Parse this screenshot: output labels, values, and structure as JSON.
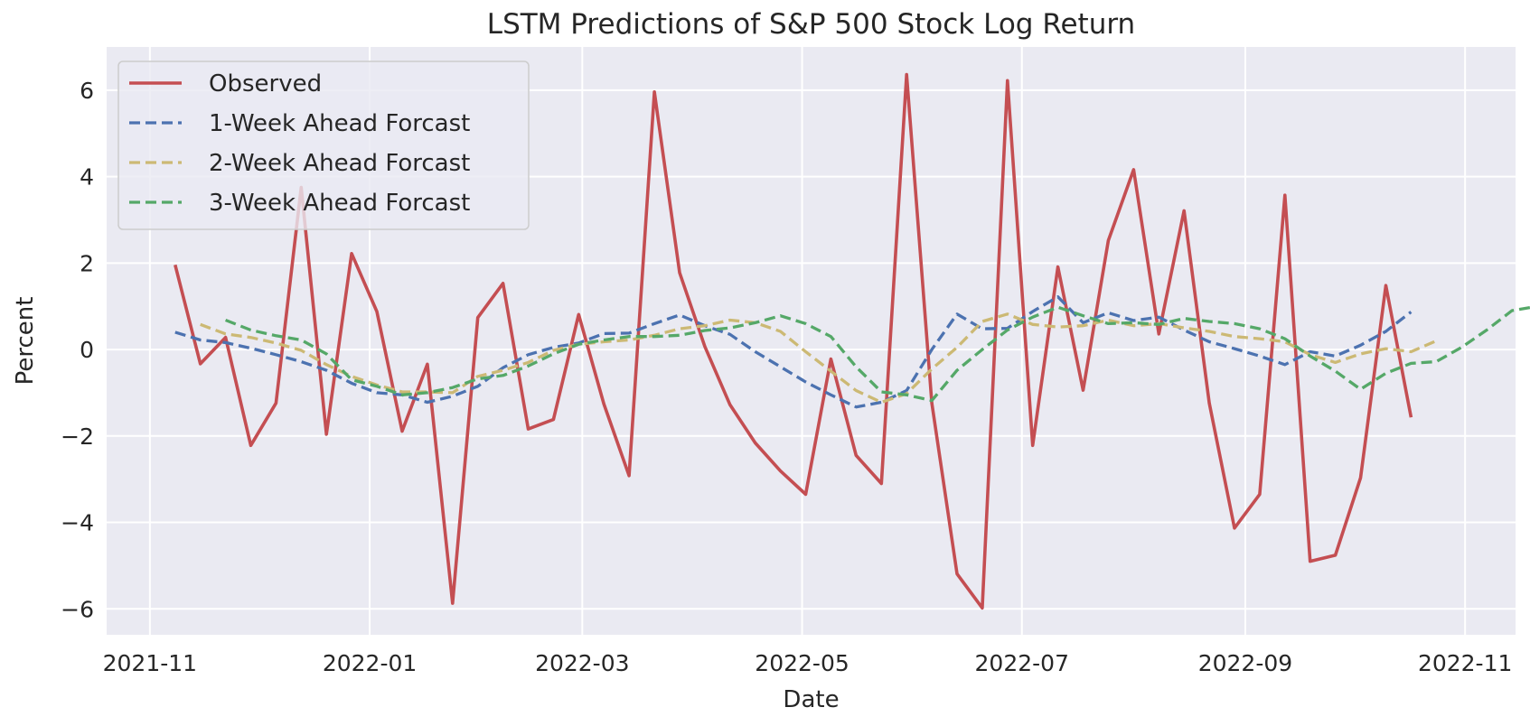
{
  "chart_data": {
    "type": "line",
    "title": "LSTM Predictions of S&P 500 Stock Log Return",
    "xlabel": "Date",
    "ylabel": "Percent",
    "xlim": [
      "2021-10-20",
      "2022-11-15"
    ],
    "ylim": [
      -6.6,
      7.0
    ],
    "grid": true,
    "legend_position": "top-left",
    "x_ticks": [
      "2021-11",
      "2022-01",
      "2022-03",
      "2022-05",
      "2022-07",
      "2022-09",
      "2022-11"
    ],
    "x_tick_dates": [
      "2021-11-01",
      "2022-01-01",
      "2022-03-01",
      "2022-05-01",
      "2022-07-01",
      "2022-09-01",
      "2022-11-01"
    ],
    "y_ticks": [
      -6,
      -4,
      -2,
      0,
      2,
      4,
      6
    ],
    "y_tick_labels": [
      "−6",
      "−4",
      "−2",
      "0",
      "2",
      "4",
      "6"
    ],
    "series": [
      {
        "name": "Observed",
        "color": "#c44e52",
        "style": "solid",
        "start_date": "2021-11-08",
        "interval_days": 7,
        "values": [
          1.96,
          -0.33,
          0.28,
          -2.22,
          -1.24,
          3.75,
          -1.96,
          2.22,
          0.88,
          -1.89,
          -0.34,
          -5.87,
          0.74,
          1.53,
          -1.84,
          -1.62,
          0.81,
          -1.26,
          -2.92,
          5.96,
          1.78,
          0.07,
          -1.28,
          -2.16,
          -2.81,
          -3.35,
          -0.22,
          -2.45,
          -3.1,
          6.36,
          -1.24,
          -5.19,
          -5.98,
          6.22,
          -2.22,
          1.91,
          -0.94,
          2.52,
          4.16,
          0.36,
          3.21,
          -1.24,
          -4.13,
          -3.35,
          3.57,
          -4.9,
          -4.76,
          -2.97,
          1.48,
          -1.57
        ]
      },
      {
        "name": "1-Week Ahead Forcast",
        "color": "#4c72b0",
        "style": "dashed",
        "start_date": "2021-11-08",
        "interval_days": 7,
        "values": [
          0.4,
          0.22,
          0.16,
          0.03,
          -0.12,
          -0.28,
          -0.48,
          -0.78,
          -1.0,
          -1.05,
          -1.22,
          -1.08,
          -0.85,
          -0.42,
          -0.12,
          0.05,
          0.15,
          0.37,
          0.38,
          0.6,
          0.8,
          0.55,
          0.35,
          -0.05,
          -0.4,
          -0.75,
          -1.05,
          -1.33,
          -1.22,
          -0.95,
          0.0,
          0.82,
          0.48,
          0.49,
          0.88,
          1.22,
          0.62,
          0.85,
          0.67,
          0.75,
          0.45,
          0.18,
          0.02,
          -0.15,
          -0.35,
          -0.05,
          -0.15,
          0.1,
          0.42,
          0.87
        ]
      },
      {
        "name": "2-Week Ahead Forcast",
        "color": "#ccb974",
        "style": "dashed",
        "start_date": "2021-11-15",
        "interval_days": 7,
        "values": [
          0.58,
          0.36,
          0.28,
          0.15,
          -0.02,
          -0.35,
          -0.62,
          -0.82,
          -0.98,
          -0.98,
          -1.0,
          -0.62,
          -0.48,
          -0.3,
          -0.02,
          0.12,
          0.18,
          0.22,
          0.33,
          0.48,
          0.55,
          0.68,
          0.62,
          0.42,
          -0.05,
          -0.5,
          -0.95,
          -1.22,
          -1.02,
          -0.45,
          0.05,
          0.65,
          0.82,
          0.58,
          0.52,
          0.55,
          0.68,
          0.55,
          0.6,
          0.5,
          0.42,
          0.3,
          0.25,
          0.18,
          -0.12,
          -0.3,
          -0.1,
          0.02,
          -0.05,
          0.2
        ]
      },
      {
        "name": "3-Week Ahead Forcast",
        "color": "#55a868",
        "style": "dashed",
        "start_date": "2021-11-22",
        "interval_days": 7,
        "values": [
          0.68,
          0.45,
          0.32,
          0.22,
          -0.1,
          -0.7,
          -0.85,
          -1.05,
          -1.0,
          -0.88,
          -0.68,
          -0.6,
          -0.38,
          -0.1,
          0.12,
          0.22,
          0.3,
          0.3,
          0.33,
          0.44,
          0.5,
          0.62,
          0.78,
          0.6,
          0.3,
          -0.4,
          -0.98,
          -1.05,
          -1.18,
          -0.48,
          0.0,
          0.45,
          0.75,
          0.98,
          0.78,
          0.6,
          0.62,
          0.58,
          0.72,
          0.65,
          0.6,
          0.48,
          0.25,
          -0.15,
          -0.5,
          -0.92,
          -0.55,
          -0.32,
          -0.28,
          0.05,
          0.45,
          0.9,
          1.0
        ]
      }
    ]
  }
}
